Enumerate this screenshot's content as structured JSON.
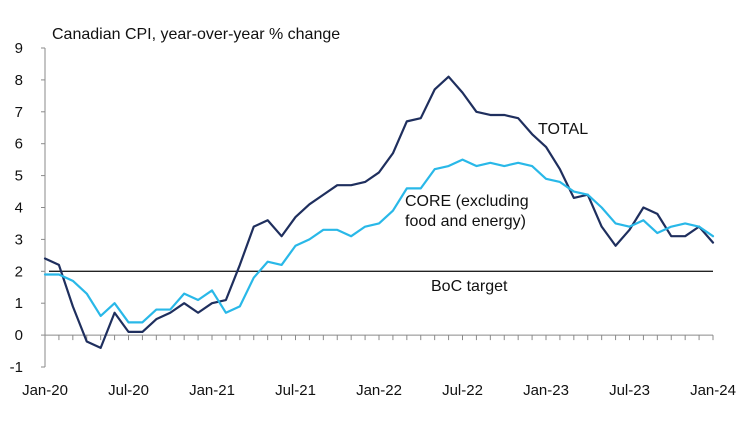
{
  "chart_data": {
    "type": "line",
    "title": "Canadian CPI, year-over-year % change",
    "xlabel": "",
    "ylabel": "",
    "ylim": [
      -1,
      9
    ],
    "y_ticks": [
      -1,
      0,
      1,
      2,
      3,
      4,
      5,
      6,
      7,
      8,
      9
    ],
    "x_tick_labels": [
      "Jan-20",
      "Jul-20",
      "Jan-21",
      "Jul-21",
      "Jan-22",
      "Jul-22",
      "Jan-23",
      "Jul-23",
      "Jan-24"
    ],
    "x": [
      "2020-01",
      "2020-02",
      "2020-03",
      "2020-04",
      "2020-05",
      "2020-06",
      "2020-07",
      "2020-08",
      "2020-09",
      "2020-10",
      "2020-11",
      "2020-12",
      "2021-01",
      "2021-02",
      "2021-03",
      "2021-04",
      "2021-05",
      "2021-06",
      "2021-07",
      "2021-08",
      "2021-09",
      "2021-10",
      "2021-11",
      "2021-12",
      "2022-01",
      "2022-02",
      "2022-03",
      "2022-04",
      "2022-05",
      "2022-06",
      "2022-07",
      "2022-08",
      "2022-09",
      "2022-10",
      "2022-11",
      "2022-12",
      "2023-01",
      "2023-02",
      "2023-03",
      "2023-04",
      "2023-05",
      "2023-06",
      "2023-07",
      "2023-08",
      "2023-09",
      "2023-10",
      "2023-11",
      "2023-12",
      "2024-01"
    ],
    "series": [
      {
        "name": "TOTAL",
        "color": "#1f2f5e",
        "values": [
          2.4,
          2.2,
          0.9,
          -0.2,
          -0.4,
          0.7,
          0.1,
          0.1,
          0.5,
          0.7,
          1.0,
          0.7,
          1.0,
          1.1,
          2.2,
          3.4,
          3.6,
          3.1,
          3.7,
          4.1,
          4.4,
          4.7,
          4.7,
          4.8,
          5.1,
          5.7,
          6.7,
          6.8,
          7.7,
          8.1,
          7.6,
          7.0,
          6.9,
          6.9,
          6.8,
          6.3,
          5.9,
          5.2,
          4.3,
          4.4,
          3.4,
          2.8,
          3.3,
          4.0,
          3.8,
          3.1,
          3.1,
          3.4,
          2.9
        ]
      },
      {
        "name": "CORE (excluding food and energy)",
        "color": "#29b8e8",
        "values": [
          1.9,
          1.9,
          1.7,
          1.3,
          0.6,
          1.0,
          0.4,
          0.4,
          0.8,
          0.8,
          1.3,
          1.1,
          1.4,
          0.7,
          0.9,
          1.8,
          2.3,
          2.2,
          2.8,
          3.0,
          3.3,
          3.3,
          3.1,
          3.4,
          3.5,
          3.9,
          4.6,
          4.6,
          5.2,
          5.3,
          5.5,
          5.3,
          5.4,
          5.3,
          5.4,
          5.3,
          4.9,
          4.8,
          4.5,
          4.4,
          4.0,
          3.5,
          3.4,
          3.6,
          3.2,
          3.4,
          3.5,
          3.4,
          3.1
        ]
      }
    ],
    "reference_line": {
      "label": "BoC target",
      "value": 2,
      "color": "#222222"
    },
    "annotations": {
      "total": "TOTAL",
      "core_line1": "CORE (excluding",
      "core_line2": "food and energy)"
    },
    "grid": false,
    "legend": "inline"
  }
}
